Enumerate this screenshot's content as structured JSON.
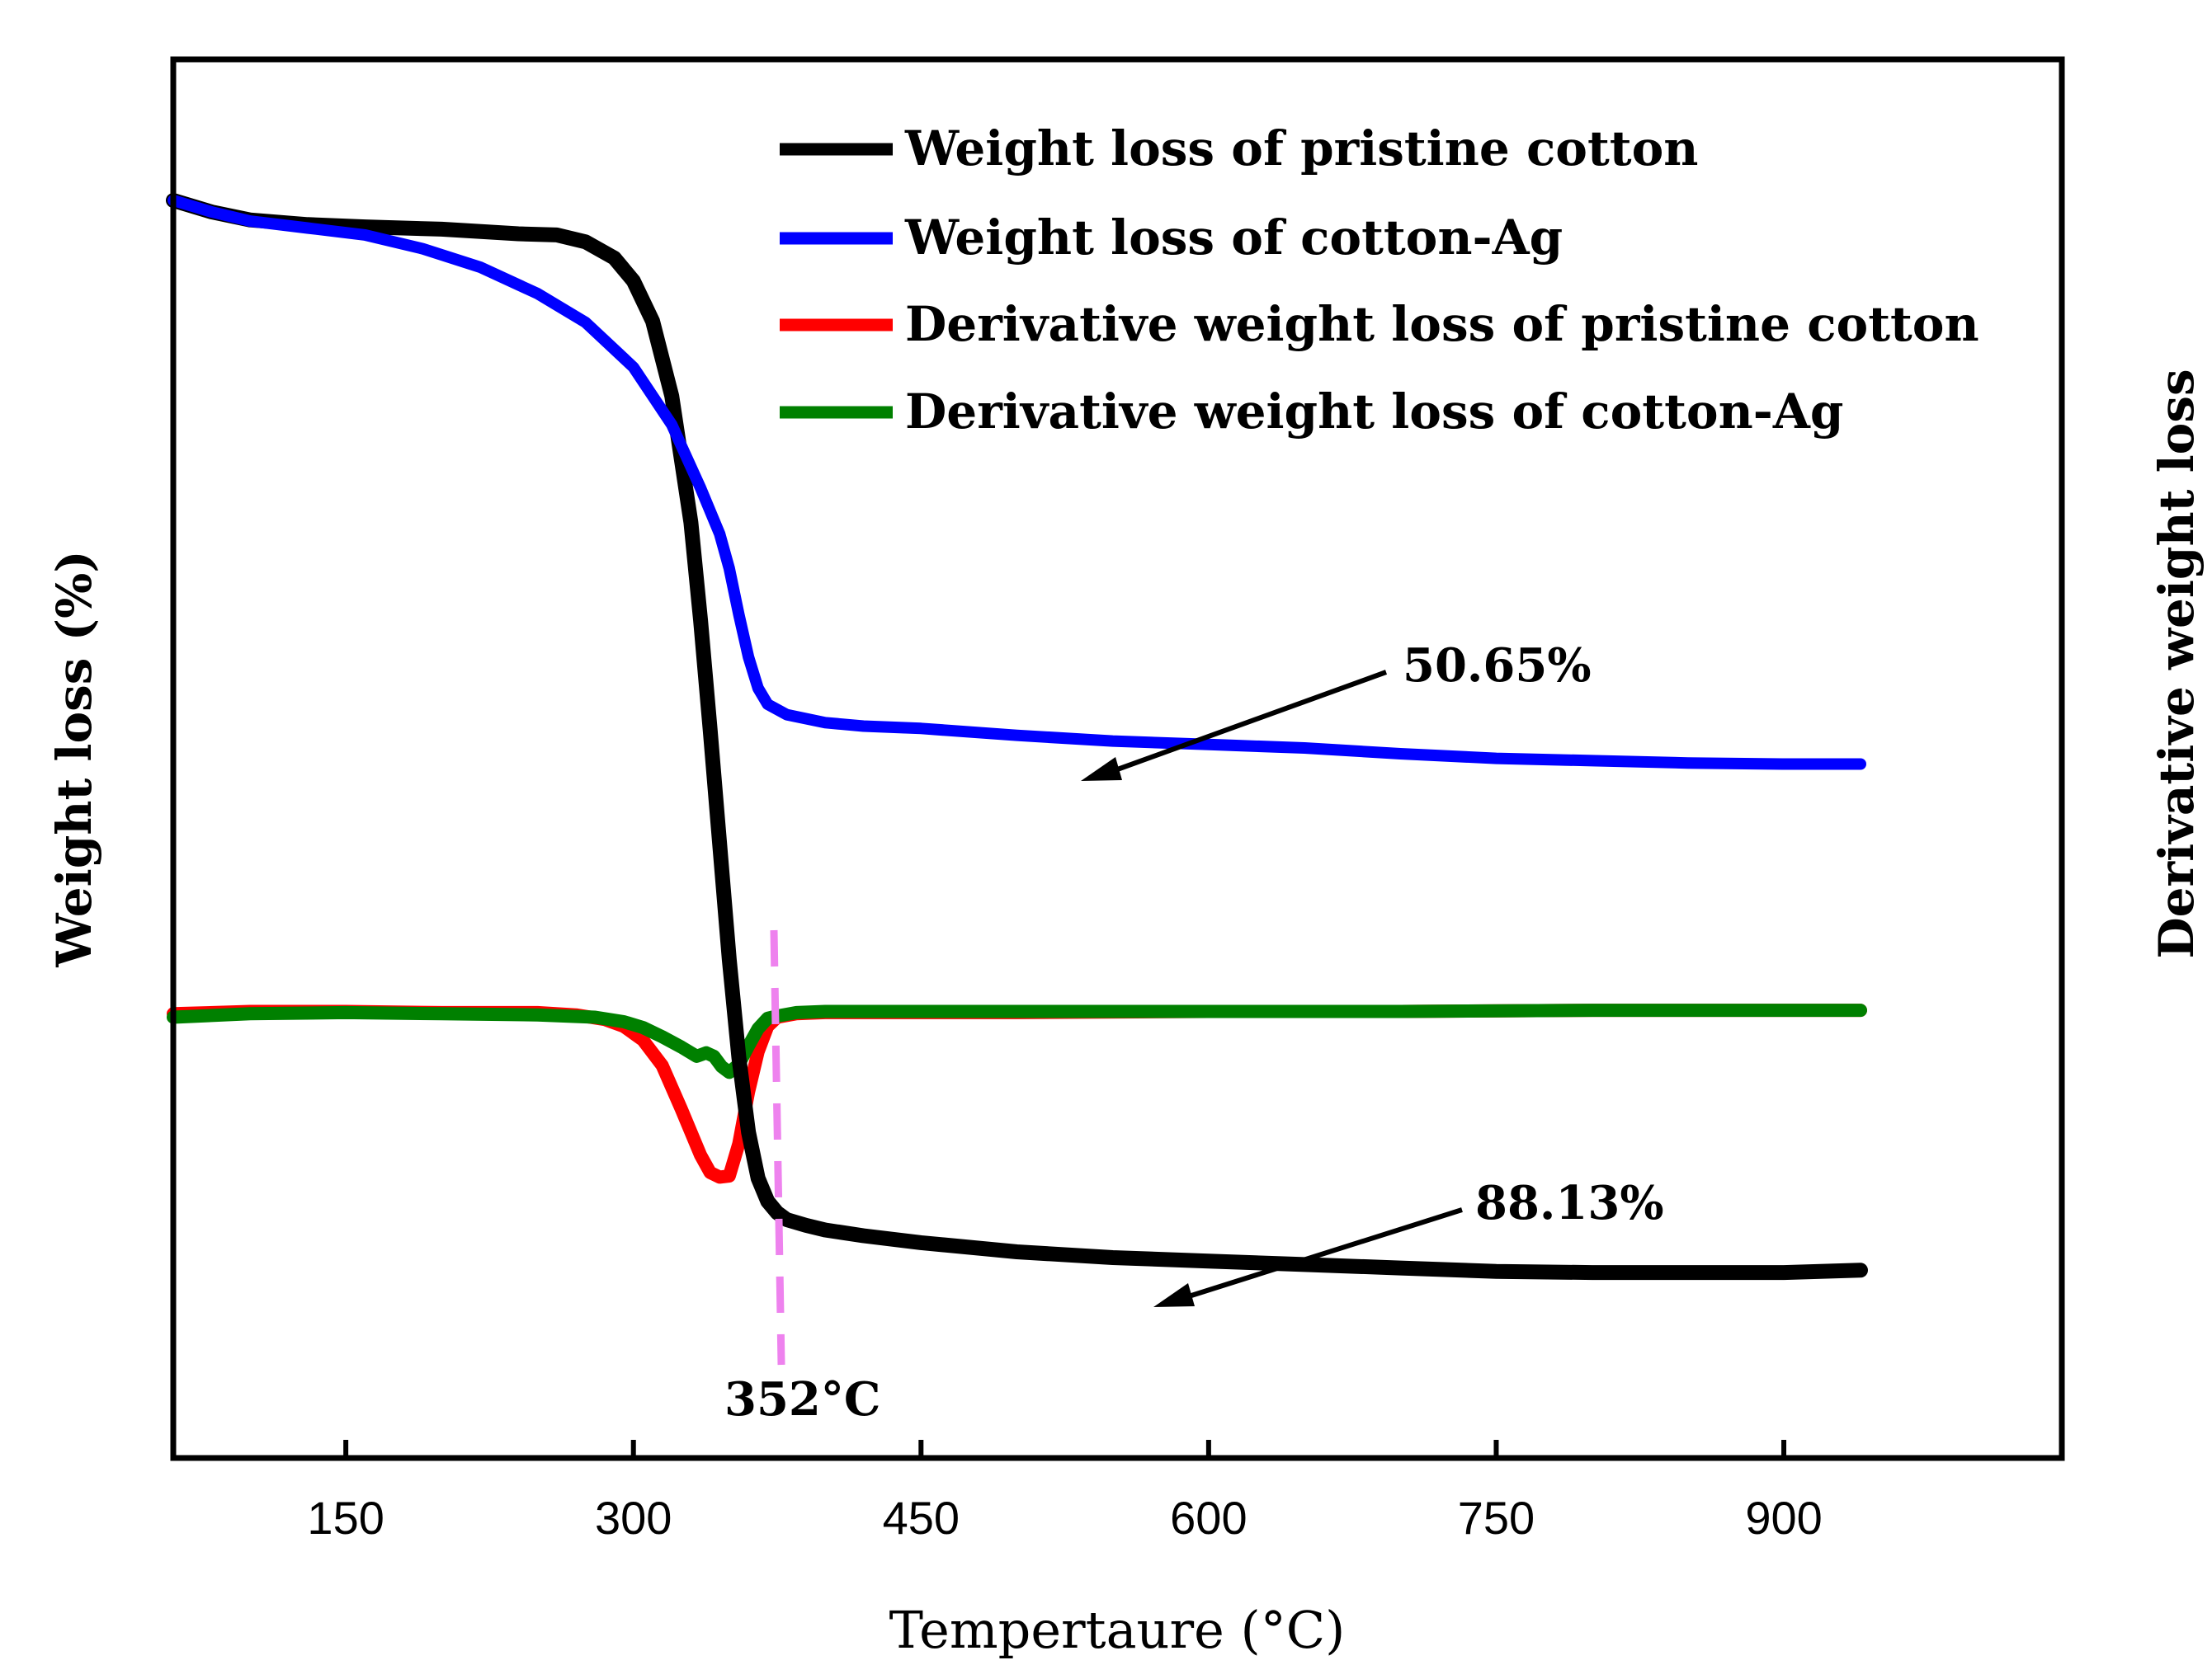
{
  "chart_data": {
    "type": "line",
    "title": "",
    "xlabel": "Tempertaure (°C)",
    "ylabel": "Weight loss (%)",
    "y2label": "Derivative weight loss",
    "xlim": [
      60,
      1045
    ],
    "ylim": [
      0,
      100
    ],
    "xticks": [
      150,
      300,
      450,
      600,
      750,
      900
    ],
    "xtick_labels": [
      "150",
      "300",
      "450",
      "600",
      "750",
      "900"
    ],
    "grid": false,
    "legend_position": "top-right",
    "series": [
      {
        "name": "Weight loss of pristine cotton",
        "color": "#000000",
        "axis": "left",
        "x": [
          60,
          80,
          100,
          130,
          160,
          200,
          240,
          260,
          275,
          290,
          300,
          310,
          320,
          330,
          335,
          340,
          345,
          350,
          355,
          360,
          365,
          370,
          375,
          380,
          390,
          400,
          420,
          450,
          500,
          550,
          600,
          650,
          700,
          750,
          800,
          850,
          900,
          940
        ],
        "y": [
          100,
          99,
          98.3,
          97.9,
          97.7,
          97.5,
          97.1,
          97.0,
          96.4,
          95.0,
          93.0,
          89.5,
          83.0,
          72.0,
          63.5,
          54.0,
          44.0,
          34.0,
          25.5,
          19.0,
          15.0,
          13.0,
          12.0,
          11.4,
          10.9,
          10.5,
          10.0,
          9.4,
          8.6,
          8.1,
          7.8,
          7.5,
          7.2,
          6.9,
          6.8,
          6.8,
          6.8,
          7.0
        ]
      },
      {
        "name": "Weight loss of cotton-Ag",
        "color": "#0000ff",
        "axis": "left",
        "x": [
          60,
          80,
          100,
          130,
          160,
          190,
          220,
          250,
          275,
          300,
          320,
          335,
          345,
          350,
          355,
          360,
          365,
          370,
          380,
          400,
          420,
          450,
          500,
          550,
          600,
          650,
          700,
          750,
          800,
          850,
          900,
          940
        ],
        "y": [
          100,
          99,
          98.2,
          97.6,
          97.0,
          95.8,
          94.2,
          91.9,
          89.4,
          85.5,
          80.5,
          75.0,
          71.0,
          68.0,
          64.0,
          60.3,
          57.6,
          56.2,
          55.3,
          54.6,
          54.3,
          54.1,
          53.5,
          53.0,
          52.7,
          52.4,
          51.9,
          51.5,
          51.3,
          51.1,
          51.0,
          51.0
        ]
      },
      {
        "name": "Derivative weight loss of pristine cotton",
        "color": "#ff0000",
        "axis": "right",
        "x": [
          60,
          100,
          150,
          200,
          250,
          270,
          285,
          295,
          305,
          315,
          325,
          335,
          340,
          345,
          350,
          355,
          360,
          365,
          370,
          375,
          385,
          400,
          500,
          600,
          700,
          800,
          900,
          940
        ],
        "y": [
          29.3,
          29.5,
          29.5,
          29.4,
          29.4,
          29.2,
          28.8,
          28.2,
          27.0,
          24.8,
          21.0,
          17.0,
          15.5,
          15.1,
          15.2,
          18.0,
          22.5,
          26.0,
          28.2,
          29.0,
          29.3,
          29.4,
          29.4,
          29.5,
          29.5,
          29.6,
          29.6,
          29.6
        ]
      },
      {
        "name": "Derivative weight loss of cotton-Ag",
        "color": "#008000",
        "axis": "right",
        "x": [
          60,
          100,
          150,
          200,
          250,
          280,
          295,
          305,
          315,
          325,
          333,
          338,
          342,
          346,
          350,
          355,
          360,
          365,
          370,
          375,
          385,
          400,
          500,
          600,
          700,
          800,
          900,
          940
        ],
        "y": [
          29.0,
          29.3,
          29.4,
          29.3,
          29.2,
          29.0,
          28.6,
          28.1,
          27.3,
          26.4,
          25.6,
          25.9,
          25.6,
          24.7,
          24.2,
          24.9,
          26.5,
          28.0,
          28.9,
          29.1,
          29.4,
          29.5,
          29.5,
          29.5,
          29.5,
          29.6,
          29.6,
          29.6
        ]
      }
    ],
    "annotations": [
      {
        "text": "50.65%",
        "points_to": {
          "x": 515,
          "y": 53.4
        }
      },
      {
        "text": "88.13%",
        "points_to": {
          "x": 550,
          "y": 10.6
        }
      },
      {
        "text": "352°C",
        "marker_x": 352,
        "color": "#ee82ee"
      }
    ]
  }
}
